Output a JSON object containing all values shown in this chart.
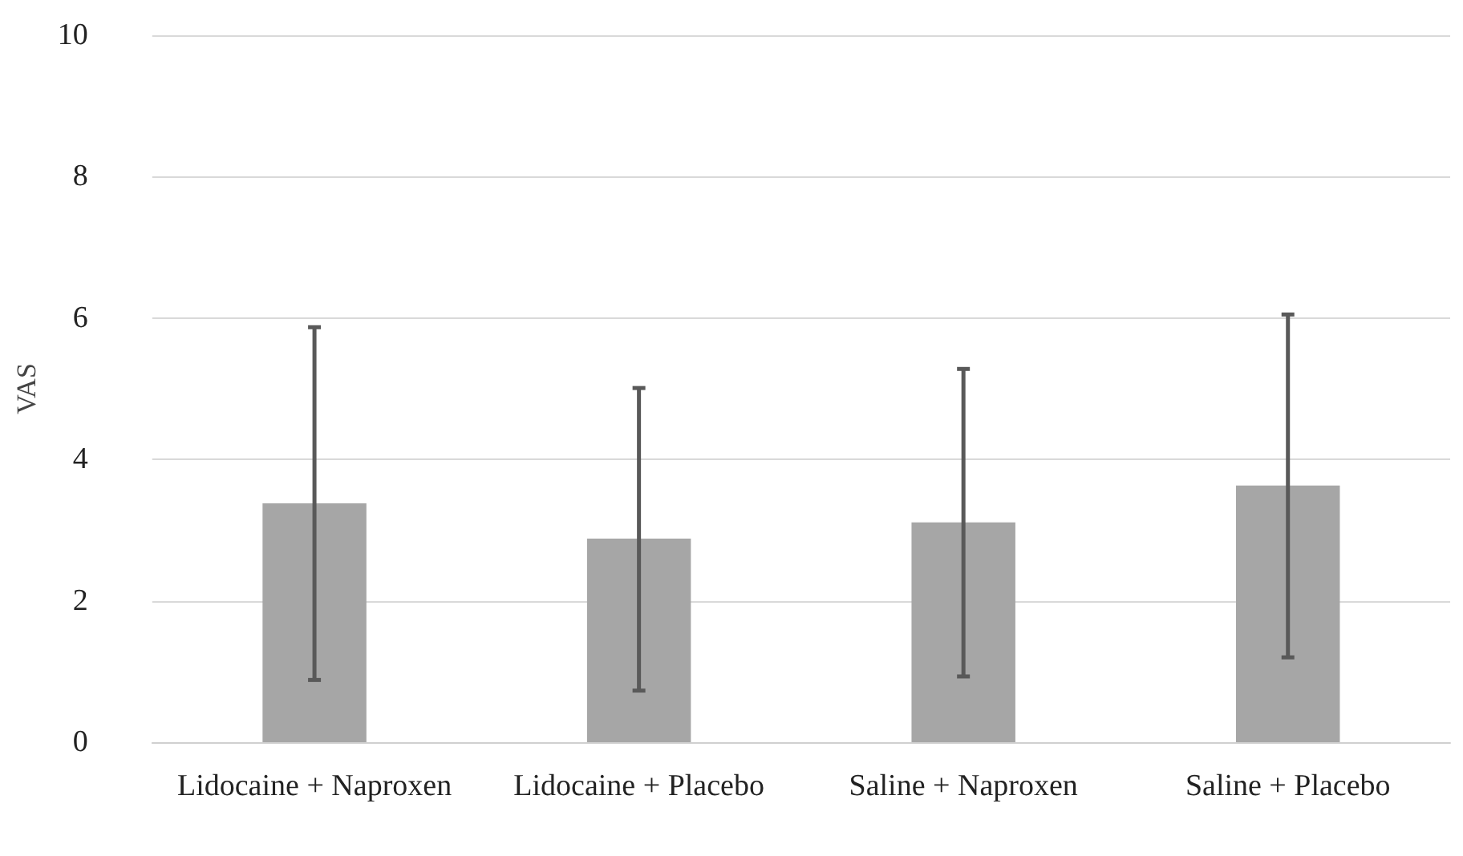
{
  "chart_data": {
    "type": "bar",
    "ylabel": "VAS",
    "categories": [
      "Lidocaine + Naproxen",
      "Lidocaine + Placebo",
      "Saline + Naproxen",
      "Saline + Placebo"
    ],
    "values": [
      3.38,
      2.88,
      3.11,
      3.63
    ],
    "errors": [
      [
        0.88,
        5.87
      ],
      [
        0.73,
        5.01
      ],
      [
        0.93,
        5.28
      ],
      [
        1.2,
        6.05
      ]
    ],
    "color": "#a6a6a6",
    "ylim": [
      0,
      10
    ],
    "yticks": [
      0,
      2,
      4,
      6,
      8,
      10
    ],
    "grid": "y"
  }
}
